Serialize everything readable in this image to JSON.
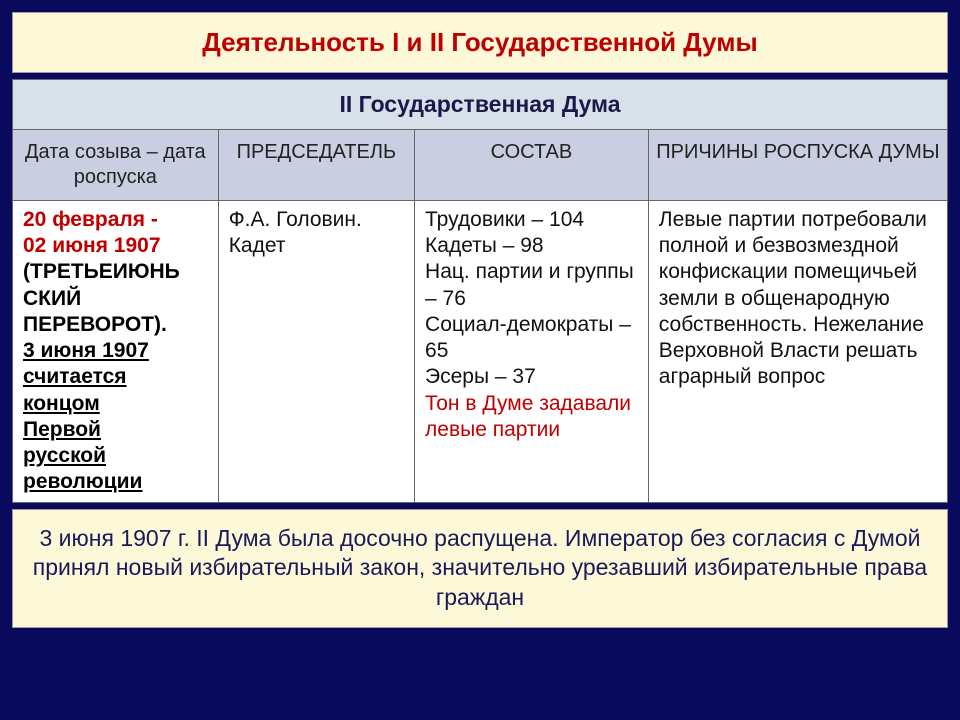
{
  "title": "Деятельность I и II Государственной Думы",
  "subtitle": "II Государственная Дума",
  "headers": {
    "col1": "Дата созыва – дата роспуска",
    "col2": "ПРЕДСЕДАТЕЛЬ",
    "col3": "СОСТАВ",
    "col4": "ПРИЧИНЫ РОСПУСКА ДУМЫ"
  },
  "dates": {
    "line1": "20 февраля -",
    "line2": "02 июня 1907",
    "line3": "(ТРЕТЬЕИЮНЬ",
    "line4": "СКИЙ",
    "line5": "ПЕРЕВОРОТ).",
    "line6": "3 июня 1907",
    "line7": "считается",
    "line8": "концом",
    "line9": "Первой",
    "line10": "русской",
    "line11": "революции"
  },
  "chairman": "Ф.А. Головин. Кадет",
  "composition": {
    "l1": "Трудовики – 104",
    "l2": "Кадеты – 98",
    "l3": "Нац. партии и группы – 76",
    "l4": "Социал-демократы – 65",
    "l5": "Эсеры – 37",
    "l6": "Тон в Думе задавали левые партии"
  },
  "reasons": "Левые партии потребовали полной и безвозмездной конфискации помещичьей земли в общенародную собственность. Нежелание Верховной Власти решать аграрный вопрос",
  "footer": "3 июня 1907 г. II Дума была досочно распущена. Император без согласия с Думой принял новый избирательный закон, значительно урезавший избирательные права граждан",
  "colors": {
    "page_bg": "#0a0a5e",
    "panel_bg": "#fdf8d8",
    "header_bg1": "#d8e0ea",
    "header_bg2": "#c9cee0",
    "accent_red": "#c00000",
    "text_dark": "#1a1a5a"
  }
}
